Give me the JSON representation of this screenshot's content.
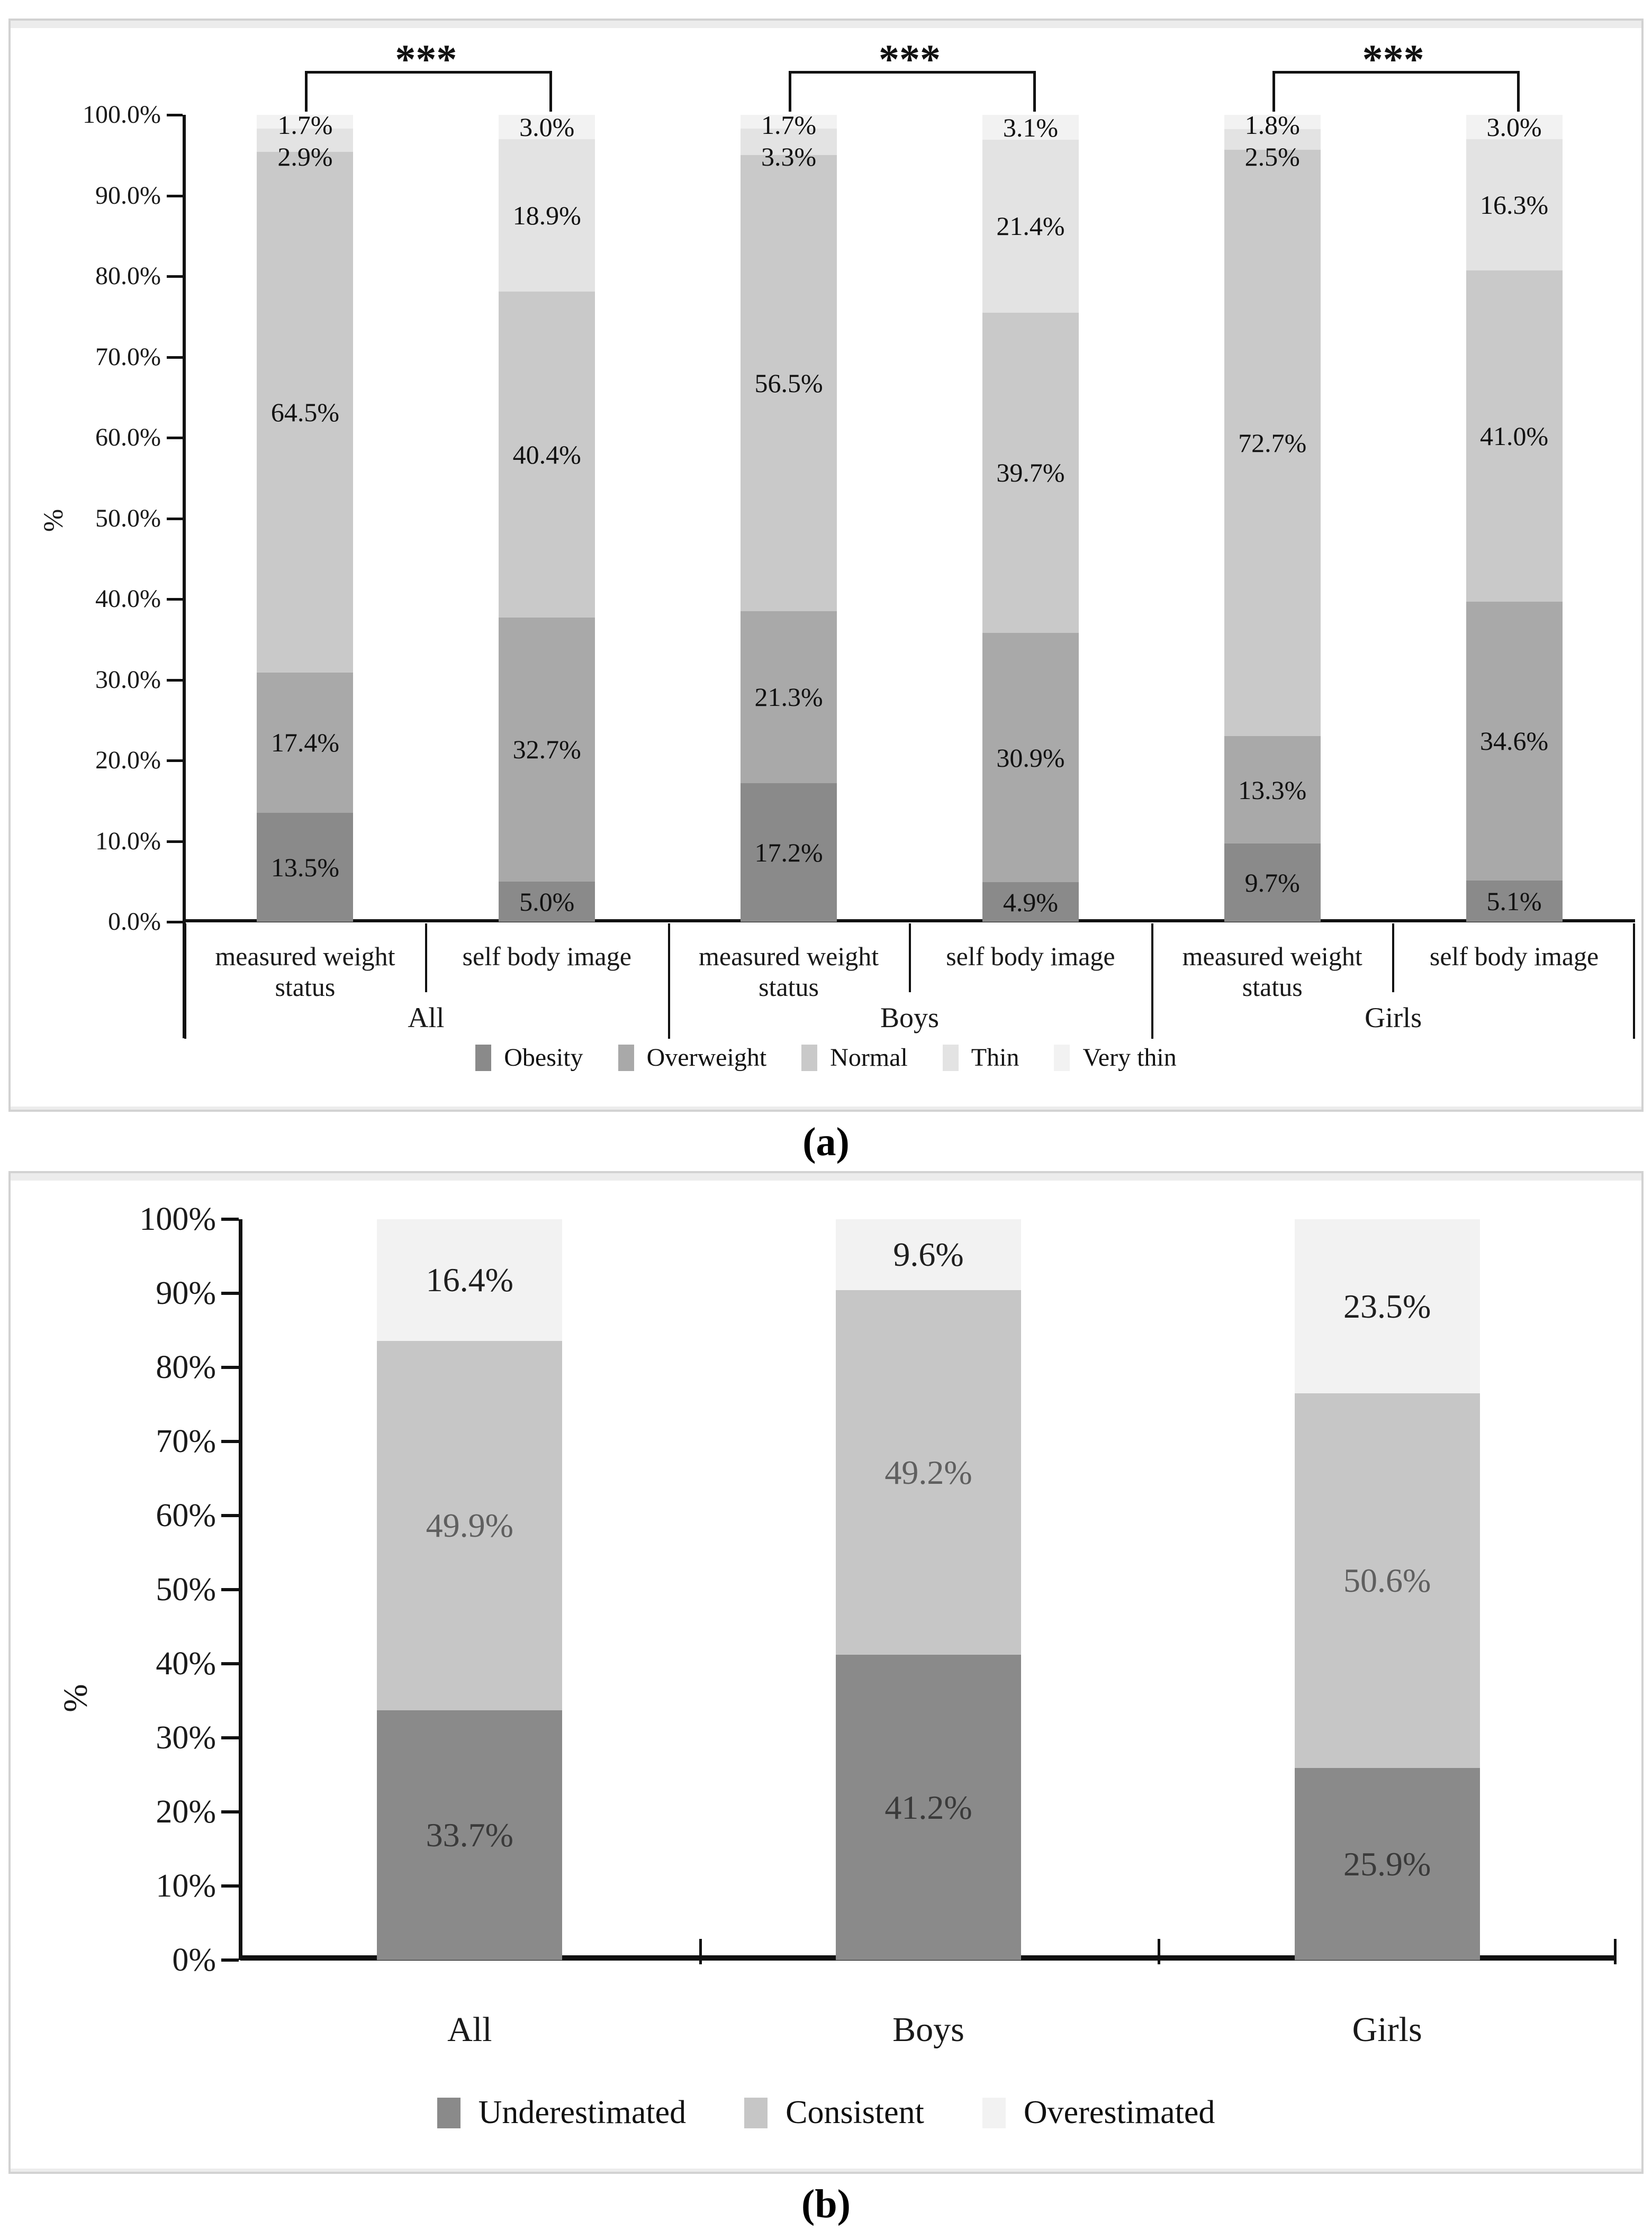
{
  "figure": {
    "caption_a": "(a)",
    "caption_b": "(b)"
  },
  "chart_data": [
    {
      "type": "bar",
      "stacked": true,
      "panel_label": "(a)",
      "title": "",
      "ylabel": "%",
      "ylim": [
        0,
        100
      ],
      "grid": false,
      "legend_position": "bottom",
      "ytick_labels": [
        "0.0%",
        "10.0%",
        "20.0%",
        "30.0%",
        "40.0%",
        "50.0%",
        "60.0%",
        "70.0%",
        "80.0%",
        "90.0%",
        "100.0%"
      ],
      "groups": [
        "All",
        "Boys",
        "Girls"
      ],
      "bar_labels": [
        "measured weight status",
        "self body image"
      ],
      "significance": [
        "***",
        "***",
        "***"
      ],
      "series": [
        {
          "name": "Obesity",
          "color": "#8a8a8a",
          "label_color": "#111111",
          "values": [
            13.5,
            5.0,
            17.2,
            4.9,
            9.7,
            5.1
          ]
        },
        {
          "name": "Overweight",
          "color": "#a9a9a9",
          "label_color": "#111111",
          "values": [
            17.4,
            32.7,
            21.3,
            30.9,
            13.3,
            34.6
          ]
        },
        {
          "name": "Normal",
          "color": "#c9c9c9",
          "label_color": "#111111",
          "values": [
            64.5,
            40.4,
            56.5,
            39.7,
            72.7,
            41.0
          ]
        },
        {
          "name": "Thin",
          "color": "#e3e3e3",
          "label_color": "#111111",
          "values": [
            2.9,
            18.9,
            3.3,
            21.4,
            2.5,
            16.3
          ]
        },
        {
          "name": "Very thin",
          "color": "#f2f2f2",
          "label_color": "#111111",
          "values": [
            1.7,
            3.0,
            1.7,
            3.1,
            1.8,
            3.0
          ]
        }
      ]
    },
    {
      "type": "bar",
      "stacked": true,
      "panel_label": "(b)",
      "title": "",
      "ylabel": "%",
      "ylim": [
        0,
        100
      ],
      "grid": false,
      "legend_position": "bottom",
      "ytick_labels": [
        "0%",
        "10%",
        "20%",
        "30%",
        "40%",
        "50%",
        "60%",
        "70%",
        "80%",
        "90%",
        "100%"
      ],
      "categories": [
        "All",
        "Boys",
        "Girls"
      ],
      "series": [
        {
          "name": "Underestimated",
          "color": "#8a8a8a",
          "label_color": "#3a3a3a",
          "values": [
            33.7,
            41.2,
            25.9
          ]
        },
        {
          "name": "Consistent",
          "color": "#c6c6c6",
          "label_color": "#5f5f5f",
          "values": [
            49.9,
            49.2,
            50.6
          ]
        },
        {
          "name": "Overestimated",
          "color": "#f2f2f2",
          "label_color": "#1f1f1f",
          "values": [
            16.4,
            9.6,
            23.5
          ]
        }
      ]
    }
  ]
}
